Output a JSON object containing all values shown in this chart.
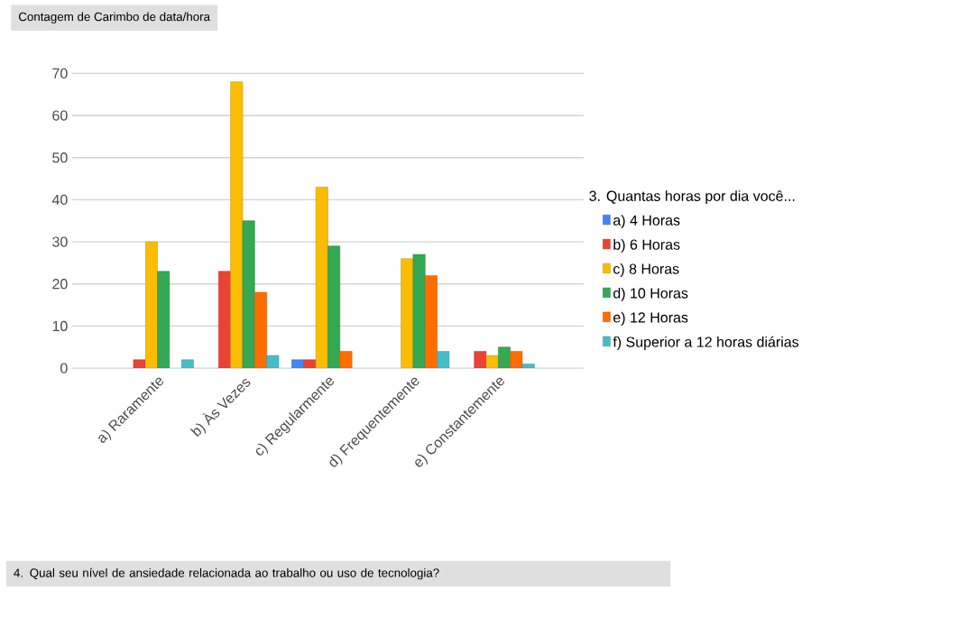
{
  "chart_data": {
    "type": "bar",
    "title": "Contagem de Carimbo de data/hora",
    "annotations": [
      "4. Qual seu nível de ansiedade relacionada ao trabalho ou uso de tecnologia?"
    ],
    "legend_title": "3. Quantas horas por dia você...",
    "categories": [
      "a) Raramente",
      "b) Às Vezes",
      "c) Regularmente",
      "d) Frequentemente",
      "e) Constantemente"
    ],
    "series": [
      {
        "name": "a) 4 Horas",
        "color": "#4285f4",
        "values": [
          null,
          null,
          2,
          null,
          null
        ]
      },
      {
        "name": "b) 6 Horas",
        "color": "#ea4335",
        "values": [
          2,
          23,
          2,
          null,
          4
        ]
      },
      {
        "name": "c) 8 Horas",
        "color": "#fbbc04",
        "values": [
          30,
          68,
          43,
          26,
          3
        ]
      },
      {
        "name": "d) 10 Horas",
        "color": "#34a853",
        "values": [
          23,
          35,
          29,
          27,
          5
        ]
      },
      {
        "name": "e) 12 Horas",
        "color": "#ff6d01",
        "values": [
          null,
          18,
          4,
          22,
          4
        ]
      },
      {
        "name": "f) Superior a 12 horas diárias",
        "color": "#46bdc6",
        "values": [
          2,
          3,
          null,
          4,
          1
        ]
      }
    ],
    "ylim": [
      0,
      70
    ],
    "yticks": [
      0,
      10,
      20,
      30,
      40,
      50,
      60,
      70
    ],
    "grid": "y",
    "legend": "right"
  }
}
